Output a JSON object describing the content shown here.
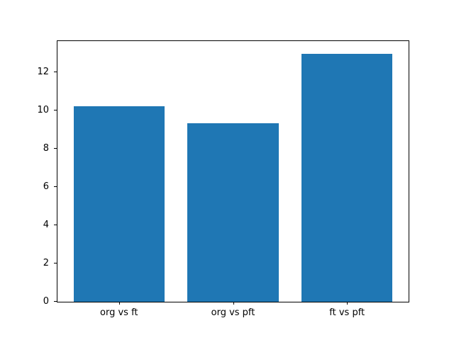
{
  "chart_data": {
    "type": "bar",
    "title": "",
    "xlabel": "",
    "ylabel": "",
    "categories": [
      "org vs ft",
      "org vs pft",
      "ft vs pft"
    ],
    "values": [
      10.25,
      9.35,
      13.0
    ],
    "yticks": [
      0,
      2,
      4,
      6,
      8,
      10,
      12
    ],
    "ylim": [
      0,
      13.65
    ],
    "bar_color": "#1f77b4",
    "axis_color": "#000000",
    "background_color": "#ffffff",
    "grid": false,
    "legend": null,
    "bar_width_fraction": 0.8,
    "x_positions": [
      0,
      1,
      2
    ],
    "xlim": [
      -0.54,
      2.54
    ]
  }
}
